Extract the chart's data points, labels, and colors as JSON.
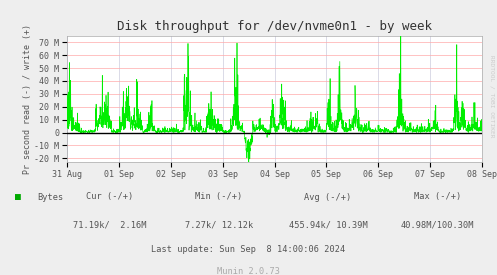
{
  "title": "Disk throughput for /dev/nvme0n1 - by week",
  "ylabel": "Pr second read (-) / write (+)",
  "bg_color": "#EEEEEE",
  "plot_bg_color": "#FFFFFF",
  "grid_color_h": "#FFAAAA",
  "grid_color_v": "#CCCCDD",
  "line_color": "#00EE00",
  "yticks": [
    -20,
    -10,
    0,
    10,
    20,
    30,
    40,
    50,
    60,
    70
  ],
  "ytick_labels": [
    "-20 M",
    "-10 M",
    "0",
    "10 M",
    "20 M",
    "30 M",
    "40 M",
    "50 M",
    "60 M",
    "70 M"
  ],
  "ylim": [
    -23,
    75
  ],
  "xtick_labels": [
    "31 Aug",
    "01 Sep",
    "02 Sep",
    "03 Sep",
    "04 Sep",
    "05 Sep",
    "06 Sep",
    "07 Sep",
    "08 Sep"
  ],
  "legend_label": "Bytes",
  "legend_color": "#00AA00",
  "zero_line_color": "#000000",
  "right_label": "RRDTOOL / TOBI OETIKER",
  "spine_color": "#AAAAAA",
  "title_color": "#333333",
  "tick_color": "#555555",
  "footer_stats_color": "#555555",
  "footer_munin_color": "#AAAAAA",
  "cur_label": "Cur (-/+)",
  "min_label": "Min (-/+)",
  "avg_label": "Avg (-/+)",
  "max_label": "Max (-/+)",
  "cur_val": "71.19k/  2.16M",
  "min_val": "7.27k/ 12.12k",
  "avg_val": "455.94k/ 10.39M",
  "max_val": "40.98M/100.30M",
  "last_update": "Last update: Sun Sep  8 14:00:06 2024",
  "munin_version": "Munin 2.0.73"
}
